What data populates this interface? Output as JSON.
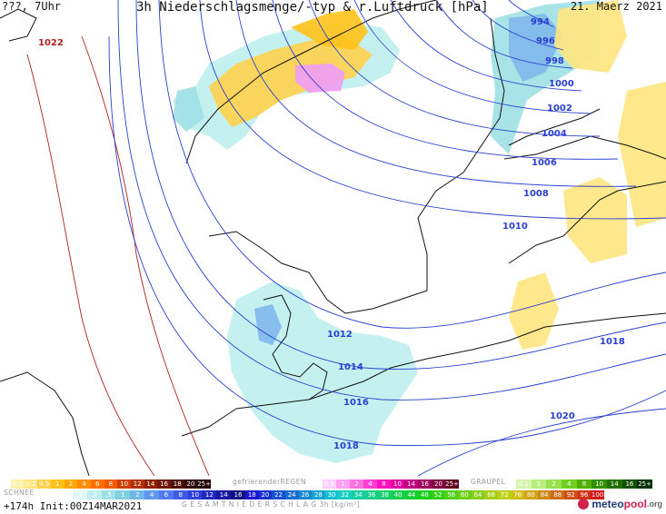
{
  "header": {
    "left": "???, 7Uhr",
    "title": "3h Niederschlagsmenge/-typ & r.Luftdruck [hPa]",
    "date": "21. Maerz 2021"
  },
  "isobars": [
    {
      "label": "1022",
      "color": "#b02020"
    },
    {
      "label": "994",
      "color": "#2a3fd0"
    },
    {
      "label": "996",
      "color": "#2a3fd0"
    },
    {
      "label": "998",
      "color": "#2a3fd0"
    },
    {
      "label": "1000",
      "color": "#2a3fd0"
    },
    {
      "label": "1002",
      "color": "#2a3fd0"
    },
    {
      "label": "1004",
      "color": "#2a3fd0"
    },
    {
      "label": "1006",
      "color": "#2a3fd0"
    },
    {
      "label": "1008",
      "color": "#2a3fd0"
    },
    {
      "label": "1010",
      "color": "#2a3fd0"
    },
    {
      "label": "1012",
      "color": "#2a3fd0"
    },
    {
      "label": "1014",
      "color": "#2a3fd0"
    },
    {
      "label": "1016",
      "color": "#2a3fd0"
    },
    {
      "label": "1018",
      "color": "#2a3fd0"
    },
    {
      "label": "1018",
      "color": "#2a3fd0"
    },
    {
      "label": "1020",
      "color": "#2a3fd0"
    }
  ],
  "legend": {
    "rain_values": [
      "0.1",
      "0.2",
      "0.5",
      "1",
      "2",
      "4",
      "6",
      "8",
      "10",
      "12",
      "14",
      "16",
      "18",
      "20",
      "25+"
    ],
    "rain_colors": [
      "#fff2a8",
      "#ffe680",
      "#ffd24d",
      "#ffc21a",
      "#ffa500",
      "#ff8c00",
      "#ff7000",
      "#f05a00",
      "#d04000",
      "#b03000",
      "#902000",
      "#701808",
      "#501008",
      "#300808",
      "#200000"
    ],
    "freezing_label": "gefrierenderREGEN",
    "freezing_values": [
      "0.1",
      "1",
      "2",
      "4",
      "8",
      "10",
      "14",
      "16",
      "20",
      "25+"
    ],
    "freezing_colors": [
      "#ffd0ff",
      "#ffa0f0",
      "#ff70e0",
      "#ff40d0",
      "#ff10c0",
      "#e000a0",
      "#c00080",
      "#a00060",
      "#800040",
      "#600020"
    ],
    "graupel_label": "GRAUPEL",
    "graupel_values": [
      "0.1",
      "1",
      "2",
      "4",
      "8",
      "10",
      "14",
      "16",
      "25+"
    ],
    "graupel_colors": [
      "#d8f5b0",
      "#b8ee80",
      "#98e050",
      "#70d020",
      "#50b000",
      "#309000",
      "#207000",
      "#105000",
      "#003000"
    ],
    "snow_label": "SCHNEE",
    "snow_values": [
      ".1",
      ".2",
      ".5",
      "1",
      "2",
      "4",
      "6",
      "8",
      "10",
      "12",
      "14",
      "16"
    ],
    "snow_colors": [
      "#e0f8f8",
      "#bfeeee",
      "#9fe0e6",
      "#80d0e0",
      "#70b8e8",
      "#6098f0",
      "#5078f0",
      "#4058e8",
      "#3040d8",
      "#2028c0",
      "#1818a0",
      "#101080"
    ],
    "total_values": [
      "18",
      "20",
      "22",
      "24",
      "26",
      "28",
      "30",
      "32",
      "34",
      "36",
      "38",
      "40",
      "44",
      "48",
      "52",
      "56",
      "60",
      "64",
      "68",
      "72",
      "76",
      "80",
      "84",
      "88",
      "92",
      "96",
      "100"
    ],
    "total_label": "G E S A M T N I E D E R S C H L A G   3h   [kg/m²]"
  },
  "footer": {
    "init": "+174h Init:00Z14MAR2021",
    "logo_meteo": "meteo",
    "logo_pool": "pool",
    "logo_tld": ".org"
  }
}
